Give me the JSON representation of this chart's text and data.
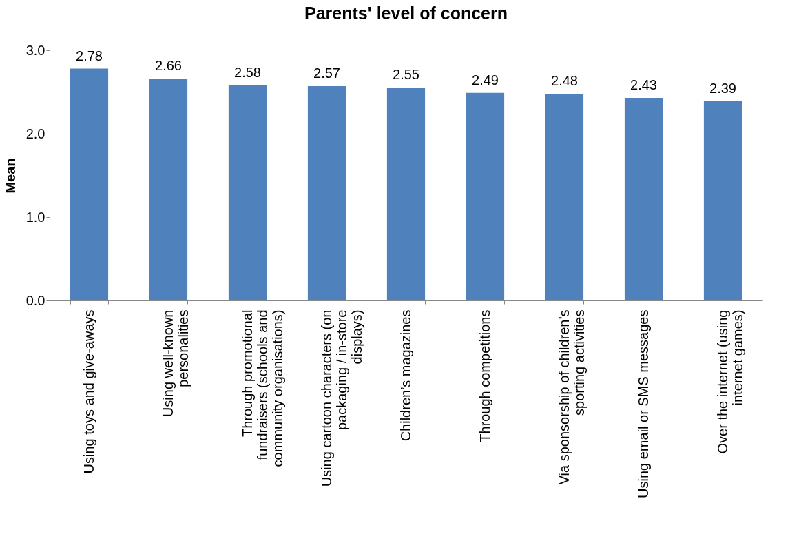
{
  "chart_data": {
    "type": "bar",
    "title": "Parents' level of concern",
    "ylabel": "Mean",
    "categories": [
      "Using toys and give-aways",
      "Using well-known personalities",
      "Through promotional fundraisers (schools and community organisations)",
      "Using cartoon characters (on packaging / in-store displays)",
      "Children’s magazines",
      "Through competitions",
      "Via sponsorship of children’s sporting activities",
      "Using email or SMS messages",
      "Over the internet (using internet games)"
    ],
    "values": [
      2.78,
      2.66,
      2.58,
      2.57,
      2.55,
      2.49,
      2.48,
      2.43,
      2.39
    ],
    "color": "#4f81bd",
    "ylim": [
      0,
      3
    ],
    "yticks": [
      {
        "value": 0,
        "label": "0.0"
      },
      {
        "value": 1,
        "label": "1.0"
      },
      {
        "value": 2,
        "label": "2.0"
      },
      {
        "value": 3,
        "label": "3.0"
      }
    ],
    "data_labels": true,
    "grid": false
  }
}
